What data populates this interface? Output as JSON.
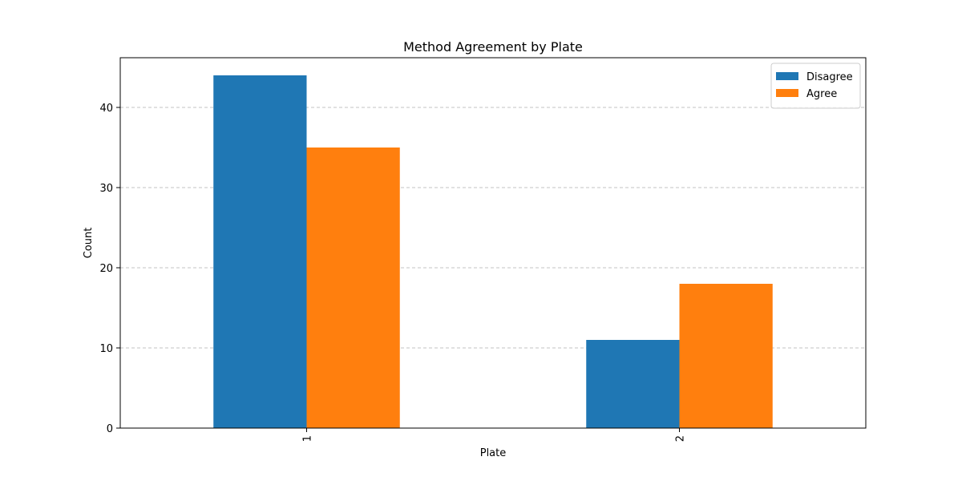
{
  "chart_data": {
    "type": "bar",
    "title": "Method Agreement by Plate",
    "xlabel": "Plate",
    "ylabel": "Count",
    "categories": [
      "1",
      "2"
    ],
    "series": [
      {
        "name": "Disagree",
        "values": [
          44,
          11
        ],
        "color": "#1f77b4"
      },
      {
        "name": "Agree",
        "values": [
          35,
          18
        ],
        "color": "#ff7f0e"
      }
    ],
    "ylim": [
      0,
      46.2
    ],
    "yticks": [
      0,
      10,
      20,
      30,
      40
    ],
    "grid": "y-dashed",
    "legend_position": "upper-right",
    "xtick_rotation": "vertical"
  }
}
